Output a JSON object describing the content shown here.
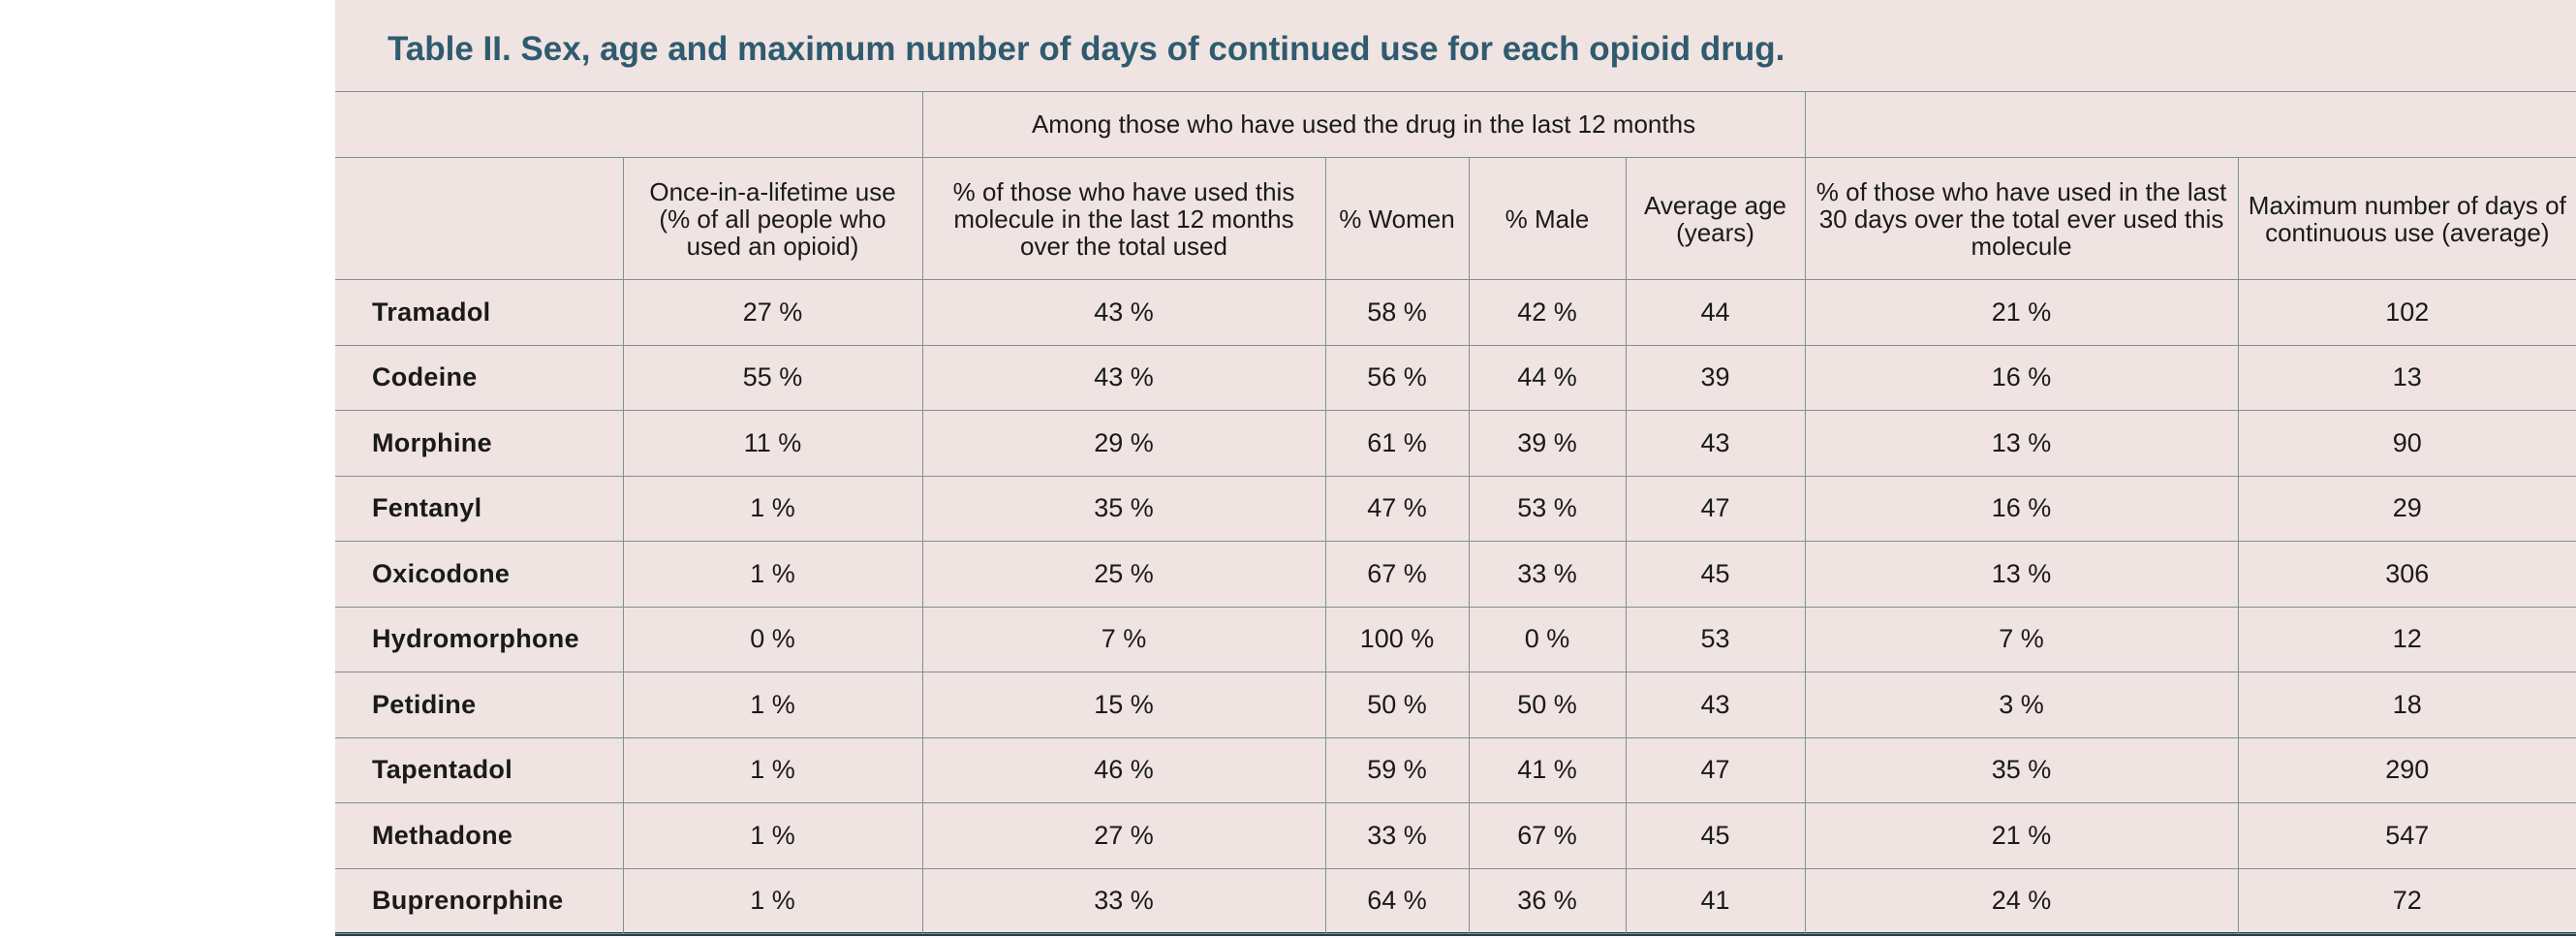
{
  "title": "Table II. Sex, age and maximum number of days of continued use for each opioid drug.",
  "group_header": "Among those who have used the drug in the last 12 months",
  "columns": [
    "",
    "Once-in-a-lifetime use (% of all people who used an opioid)",
    "% of those who have used this molecule in the last 12 months over the total used",
    "% Women",
    "% Male",
    "Average age (years)",
    "% of those who have used in the last 30 days over the total ever used this molecule",
    "Maximum number of days of continuous use (average)"
  ],
  "rows": [
    {
      "drug": "Tramadol",
      "lifetime": "27 %",
      "last12": "43 %",
      "women": "58 %",
      "male": "42 %",
      "age": "44",
      "last30": "21 %",
      "max_days": "102"
    },
    {
      "drug": "Codeine",
      "lifetime": "55 %",
      "last12": "43 %",
      "women": "56 %",
      "male": "44 %",
      "age": "39",
      "last30": "16 %",
      "max_days": "13"
    },
    {
      "drug": "Morphine",
      "lifetime": "11 %",
      "last12": "29 %",
      "women": "61 %",
      "male": "39 %",
      "age": "43",
      "last30": "13 %",
      "max_days": "90"
    },
    {
      "drug": "Fentanyl",
      "lifetime": "1 %",
      "last12": "35 %",
      "women": "47 %",
      "male": "53 %",
      "age": "47",
      "last30": "16 %",
      "max_days": "29"
    },
    {
      "drug": "Oxicodone",
      "lifetime": "1 %",
      "last12": "25 %",
      "women": "67 %",
      "male": "33 %",
      "age": "45",
      "last30": "13 %",
      "max_days": "306"
    },
    {
      "drug": "Hydromorphone",
      "lifetime": "0 %",
      "last12": "7 %",
      "women": "100 %",
      "male": "0 %",
      "age": "53",
      "last30": "7 %",
      "max_days": "12"
    },
    {
      "drug": "Petidine",
      "lifetime": "1 %",
      "last12": "15 %",
      "women": "50 %",
      "male": "50 %",
      "age": "43",
      "last30": "3 %",
      "max_days": "18"
    },
    {
      "drug": "Tapentadol",
      "lifetime": "1 %",
      "last12": "46 %",
      "women": "59 %",
      "male": "41 %",
      "age": "47",
      "last30": "35 %",
      "max_days": "290"
    },
    {
      "drug": "Methadone",
      "lifetime": "1 %",
      "last12": "27 %",
      "women": "33 %",
      "male": "67 %",
      "age": "45",
      "last30": "21 %",
      "max_days": "547"
    },
    {
      "drug": "Buprenorphine",
      "lifetime": "1 %",
      "last12": "33 %",
      "women": "64 %",
      "male": "36 %",
      "age": "41",
      "last30": "24 %",
      "max_days": "72"
    }
  ],
  "colors": {
    "panel_background": "#efe4e1",
    "title": "#2f5b70",
    "grid_lines": "#7f8f97",
    "bottom_rule": "#2a3f4a"
  }
}
